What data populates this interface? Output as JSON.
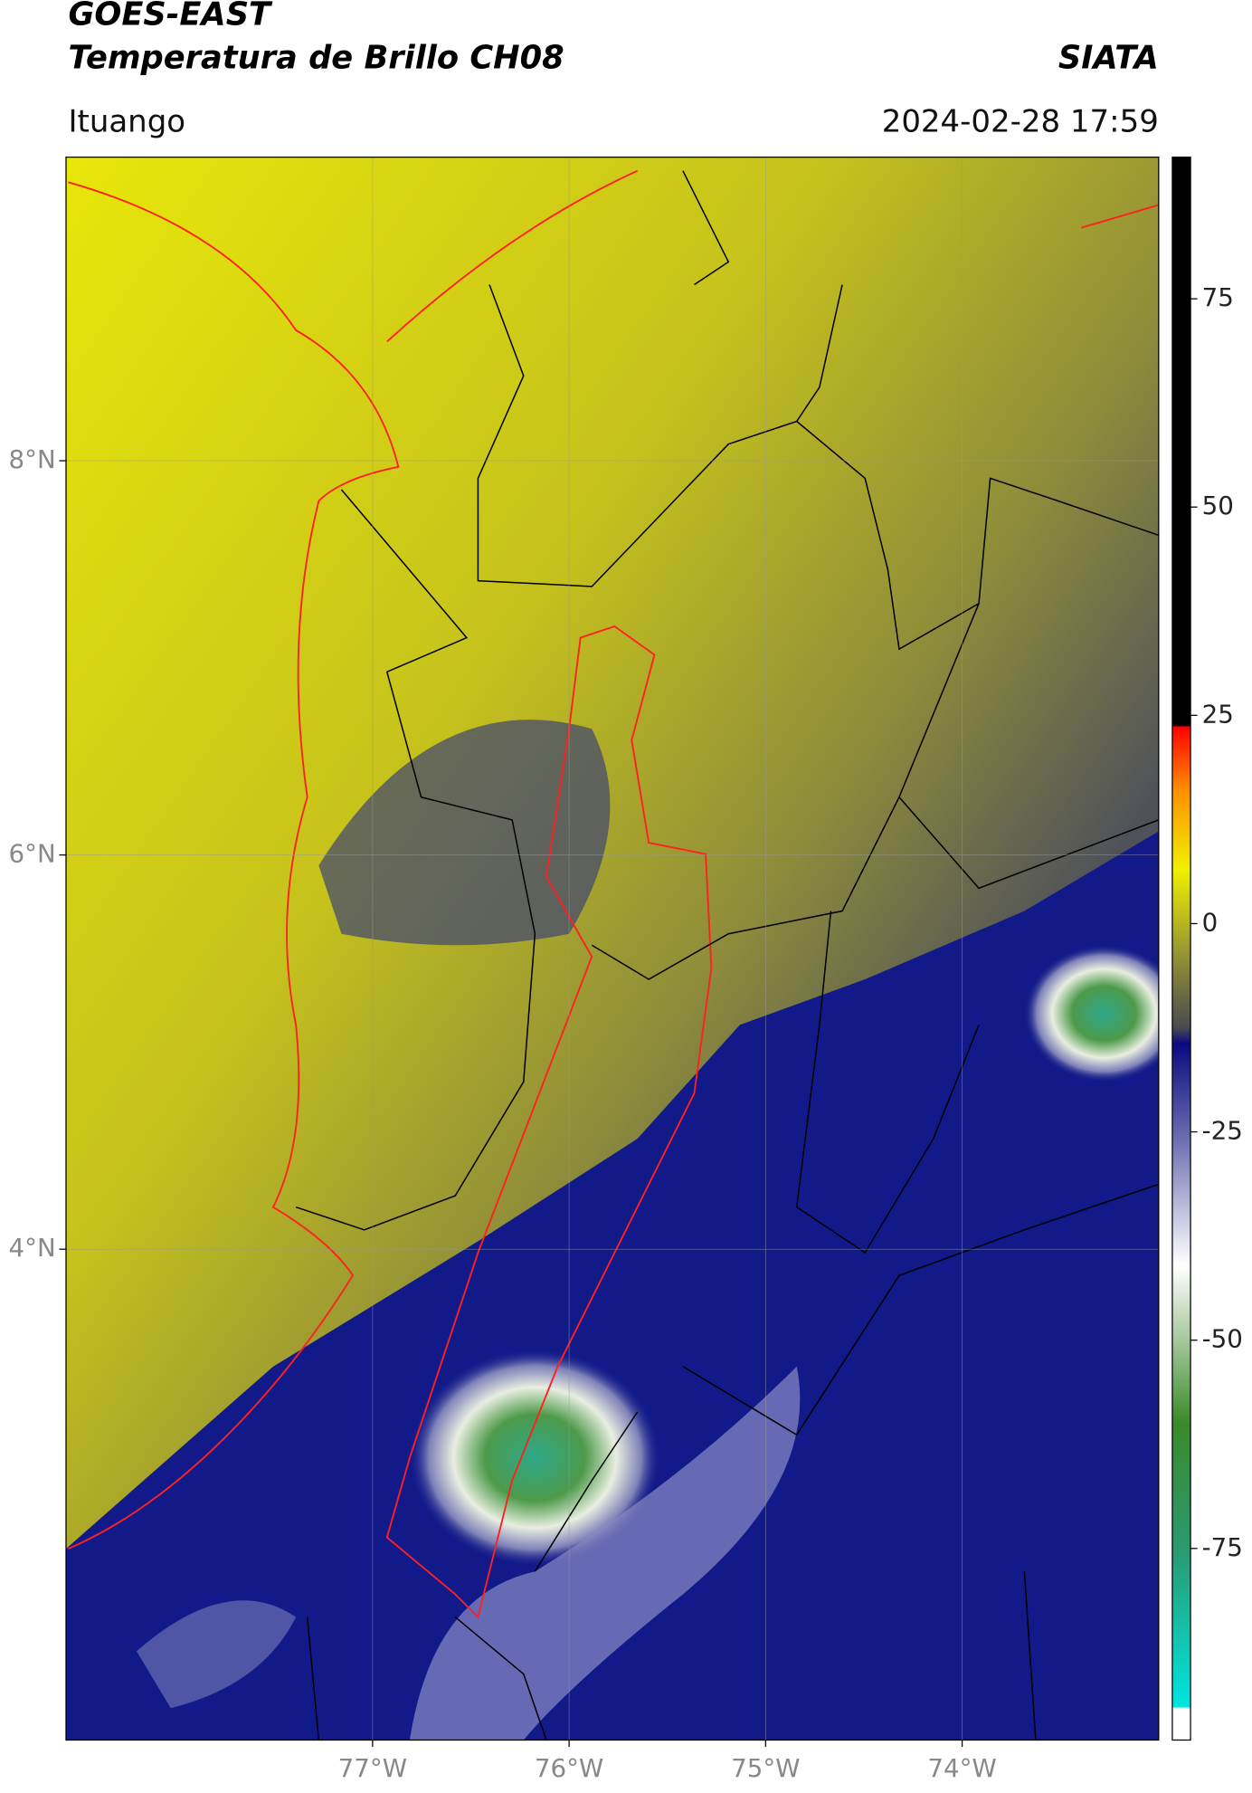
{
  "header": {
    "title": "GOES-EAST",
    "subtitle": "Temperatura de Brillo CH08",
    "brand": "SIATA",
    "location": "Ituango",
    "datetime": "2024-02-28 17:59"
  },
  "map": {
    "xlim": [
      -78.56,
      -73.0
    ],
    "ylim": [
      1.51,
      9.54
    ],
    "xticks": [
      {
        "value": -77,
        "label": "77°W"
      },
      {
        "value": -76,
        "label": "76°W"
      },
      {
        "value": -75,
        "label": "75°W"
      },
      {
        "value": -74,
        "label": "74°W"
      }
    ],
    "yticks": [
      {
        "value": 8,
        "label": "8°N"
      },
      {
        "value": 6,
        "label": "6°N"
      },
      {
        "value": 4,
        "label": "4°N"
      }
    ],
    "grid": true
  },
  "colorbar": {
    "lim": [
      -98,
      92
    ],
    "ticks": [
      75,
      50,
      25,
      0,
      -25,
      -50,
      -75
    ]
  }
}
